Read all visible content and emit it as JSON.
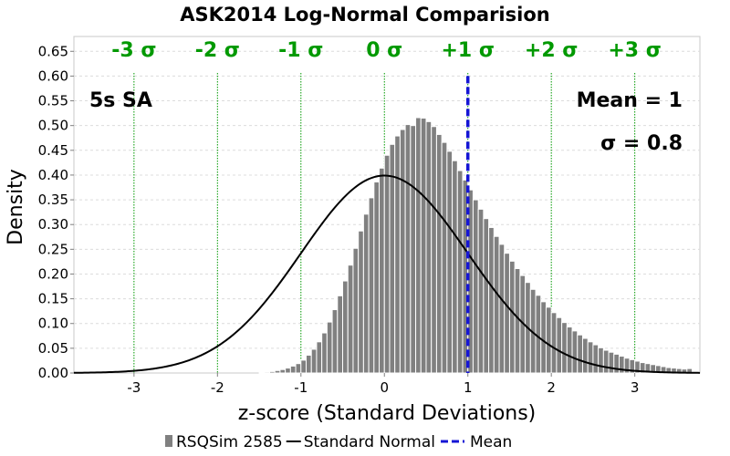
{
  "chart_data": {
    "type": "bar",
    "title": "ASK2014 Log-Normal Comparision",
    "xlabel": "z-score (Standard Deviations)",
    "ylabel": "Density",
    "xlim": [
      -3.72,
      3.78
    ],
    "ylim": [
      0,
      0.68
    ],
    "x_ticks": [
      -3,
      -2,
      -1,
      0,
      1,
      2,
      3
    ],
    "x_tick_labels": [
      "-3",
      "-2",
      "-1",
      "0",
      "1",
      "2",
      "3"
    ],
    "y_ticks": [
      0.0,
      0.05,
      0.1,
      0.15,
      0.2,
      0.25,
      0.3,
      0.35,
      0.4,
      0.45,
      0.5,
      0.55,
      0.6,
      0.65
    ],
    "y_tick_labels": [
      "0.00",
      "0.05",
      "0.10",
      "0.15",
      "0.20",
      "0.25",
      "0.30",
      "0.35",
      "0.40",
      "0.45",
      "0.50",
      "0.55",
      "0.60",
      "0.65"
    ],
    "grid": true,
    "sigma_lines": [
      {
        "x": -3,
        "label": "-3 σ"
      },
      {
        "x": -2,
        "label": "-2 σ"
      },
      {
        "x": -1,
        "label": "-1 σ"
      },
      {
        "x": 0,
        "label": "0 σ"
      },
      {
        "x": 1,
        "label": "+1 σ"
      },
      {
        "x": 2,
        "label": "+2 σ"
      },
      {
        "x": 3,
        "label": "+3 σ"
      }
    ],
    "annotations": {
      "period": "5s SA",
      "mean": "Mean = 1",
      "sigma": "σ = 0.8"
    },
    "histogram": {
      "name": "RSQSim 2585",
      "bin_width": 0.0625,
      "start": -1.5,
      "values": [
        0.001,
        0.002,
        0.003,
        0.005,
        0.007,
        0.01,
        0.014,
        0.019,
        0.026,
        0.036,
        0.048,
        0.063,
        0.081,
        0.103,
        0.128,
        0.156,
        0.186,
        0.218,
        0.252,
        0.287,
        0.321,
        0.354,
        0.386,
        0.414,
        0.44,
        0.462,
        0.479,
        0.492,
        0.502,
        0.5,
        0.516,
        0.515,
        0.508,
        0.498,
        0.482,
        0.466,
        0.448,
        0.429,
        0.409,
        0.39,
        0.37,
        0.35,
        0.331,
        0.312,
        0.294,
        0.276,
        0.26,
        0.242,
        0.226,
        0.211,
        0.197,
        0.183,
        0.169,
        0.157,
        0.144,
        0.133,
        0.122,
        0.112,
        0.102,
        0.093,
        0.085,
        0.077,
        0.07,
        0.063,
        0.057,
        0.051,
        0.046,
        0.042,
        0.038,
        0.034,
        0.03,
        0.027,
        0.024,
        0.021,
        0.019,
        0.017,
        0.015,
        0.013,
        0.011,
        0.01,
        0.009,
        0.008,
        0.009
      ]
    },
    "normal_curve": {
      "name": "Standard Normal",
      "mean": 0,
      "sd": 1
    },
    "mean_line": {
      "name": "Mean",
      "x": 1,
      "y_top": 0.6
    },
    "colors": {
      "bar": "#808080",
      "bar_edge": "#ffffff",
      "curve": "#000000",
      "mean": "#1515d5",
      "sigma": "#009900",
      "grid": "#dcdcdc"
    },
    "legend": {
      "position": "bottom",
      "items": [
        {
          "label": "RSQSim 2585",
          "marker": "bar"
        },
        {
          "label": "Standard Normal",
          "marker": "line"
        },
        {
          "label": "Mean",
          "marker": "dash"
        }
      ]
    }
  }
}
